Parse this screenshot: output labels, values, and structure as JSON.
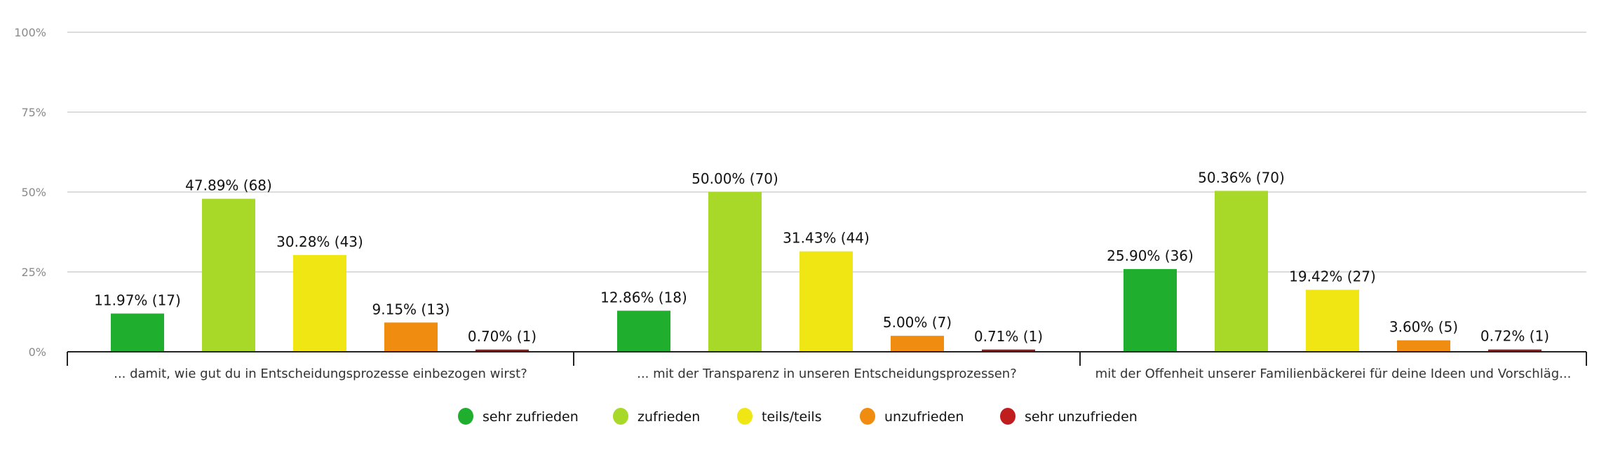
{
  "chart_data": {
    "type": "bar",
    "title": "",
    "xlabel": "",
    "ylabel": "",
    "ylim": [
      0,
      100
    ],
    "yticks": [
      "0%",
      "25%",
      "50%",
      "75%",
      "100%"
    ],
    "ytick_values": [
      0,
      25,
      50,
      75,
      100
    ],
    "grid": true,
    "legend_position": "bottom",
    "categories": [
      "... damit, wie gut du in Entscheidungsprozesse einbezogen wirst?",
      "... mit der Transparenz in unseren Entscheidungsprozessen?",
      "mit der Offenheit unserer Familienbäckerei für deine Ideen und Vorschläg..."
    ],
    "series": [
      {
        "name": "sehr zufrieden",
        "color": "#1fae2e",
        "values": [
          11.97,
          12.86,
          25.9
        ],
        "counts": [
          17,
          18,
          36
        ],
        "labels": [
          "11.97% (17)",
          "12.86% (18)",
          "25.90% (36)"
        ]
      },
      {
        "name": "zufrieden",
        "color": "#a8d828",
        "values": [
          47.89,
          50.0,
          50.36
        ],
        "counts": [
          68,
          70,
          70
        ],
        "labels": [
          "47.89% (68)",
          "50.00% (70)",
          "50.36% (70)"
        ]
      },
      {
        "name": "teils/teils",
        "color": "#f0e614",
        "values": [
          30.28,
          31.43,
          19.42
        ],
        "counts": [
          43,
          44,
          27
        ],
        "labels": [
          "30.28% (43)",
          "31.43% (44)",
          "19.42% (27)"
        ]
      },
      {
        "name": "unzufrieden",
        "color": "#f08c10",
        "values": [
          9.15,
          5.0,
          3.6
        ],
        "counts": [
          13,
          7,
          5
        ],
        "labels": [
          "9.15% (13)",
          "5.00% (7)",
          "3.60% (5)"
        ]
      },
      {
        "name": "sehr unzufrieden",
        "color": "#c01e1e",
        "bar_color": "#8e1f1f",
        "values": [
          0.7,
          0.71,
          0.72
        ],
        "counts": [
          1,
          1,
          1
        ],
        "labels": [
          "0.70% (1)",
          "0.71% (1)",
          "0.72% (1)"
        ]
      }
    ]
  }
}
